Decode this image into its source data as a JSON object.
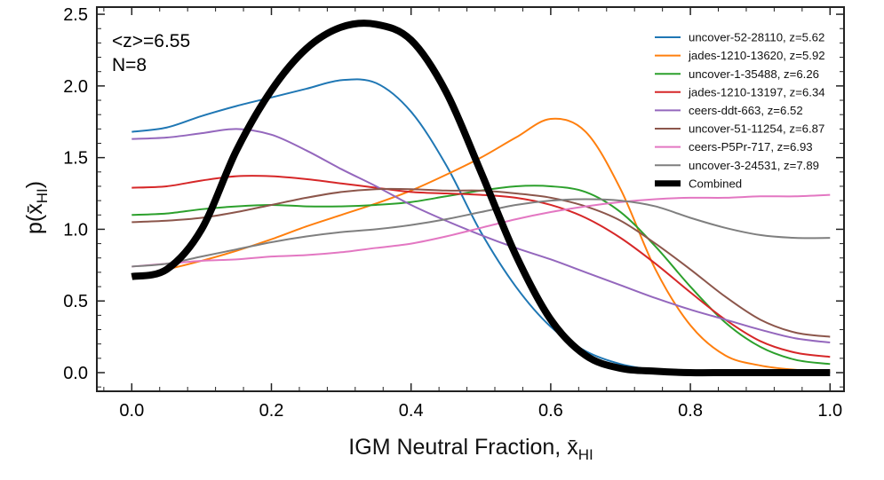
{
  "chart_data": {
    "type": "line",
    "xlabel": "IGM Neutral Fraction, x̄",
    "xlabel_sub": "HI",
    "ylabel": "p(x̄",
    "ylabel_sub": "HI",
    "ylabel_close": ")",
    "xlim": [
      -0.05,
      1.02
    ],
    "ylim": [
      -0.13,
      2.55
    ],
    "x_ticks": [
      "0.0",
      "0.2",
      "0.4",
      "0.6",
      "0.8",
      "1.0"
    ],
    "y_ticks": [
      "0.0",
      "0.5",
      "1.0",
      "1.5",
      "2.0",
      "2.5"
    ],
    "annotations": [
      "<z>=6.55",
      "N=8"
    ],
    "legend_position": "top-right",
    "grid": false,
    "x": [
      0.0,
      0.05,
      0.1,
      0.15,
      0.2,
      0.25,
      0.3,
      0.35,
      0.4,
      0.45,
      0.5,
      0.55,
      0.6,
      0.65,
      0.7,
      0.75,
      0.8,
      0.85,
      0.9,
      0.95,
      1.0
    ],
    "series": [
      {
        "name": "uncover-52-28110, z=5.62",
        "color": "#1f77b4",
        "width": 2,
        "values": [
          1.68,
          1.71,
          1.79,
          1.86,
          1.92,
          1.98,
          2.04,
          2.02,
          1.82,
          1.45,
          0.98,
          0.6,
          0.32,
          0.15,
          0.06,
          0.02,
          0.01,
          0.0,
          0.0,
          0.0,
          0.0
        ]
      },
      {
        "name": "jades-1210-13620, z=5.92",
        "color": "#ff7f0e",
        "width": 2,
        "values": [
          0.67,
          0.72,
          0.78,
          0.85,
          0.93,
          1.02,
          1.1,
          1.18,
          1.27,
          1.38,
          1.5,
          1.64,
          1.77,
          1.68,
          1.28,
          0.72,
          0.33,
          0.12,
          0.05,
          0.02,
          0.01
        ]
      },
      {
        "name": "uncover-1-35488, z=6.26",
        "color": "#2ca02c",
        "width": 2,
        "values": [
          1.1,
          1.11,
          1.14,
          1.16,
          1.17,
          1.16,
          1.16,
          1.17,
          1.19,
          1.23,
          1.27,
          1.3,
          1.3,
          1.26,
          1.12,
          0.88,
          0.6,
          0.35,
          0.18,
          0.09,
          0.06
        ]
      },
      {
        "name": "jades-1210-13197, z=6.34",
        "color": "#d62728",
        "width": 2,
        "values": [
          1.29,
          1.3,
          1.34,
          1.37,
          1.37,
          1.35,
          1.32,
          1.29,
          1.26,
          1.25,
          1.24,
          1.22,
          1.17,
          1.08,
          0.94,
          0.76,
          0.56,
          0.37,
          0.22,
          0.14,
          0.11
        ]
      },
      {
        "name": "ceers-ddt-663, z=6.52",
        "color": "#9467bd",
        "width": 2,
        "values": [
          1.63,
          1.64,
          1.67,
          1.7,
          1.66,
          1.55,
          1.42,
          1.3,
          1.17,
          1.06,
          0.96,
          0.87,
          0.79,
          0.7,
          0.61,
          0.52,
          0.44,
          0.37,
          0.3,
          0.24,
          0.21
        ]
      },
      {
        "name": "uncover-51-11254, z=6.87",
        "color": "#8c564b",
        "width": 2,
        "values": [
          1.05,
          1.06,
          1.08,
          1.12,
          1.17,
          1.22,
          1.26,
          1.28,
          1.28,
          1.27,
          1.27,
          1.25,
          1.22,
          1.16,
          1.06,
          0.9,
          0.72,
          0.53,
          0.37,
          0.28,
          0.25
        ]
      },
      {
        "name": "ceers-P5Pr-717, z=6.93",
        "color": "#e377c2",
        "width": 2,
        "values": [
          0.74,
          0.76,
          0.78,
          0.79,
          0.81,
          0.82,
          0.84,
          0.87,
          0.9,
          0.95,
          1.01,
          1.07,
          1.12,
          1.16,
          1.19,
          1.21,
          1.22,
          1.22,
          1.23,
          1.23,
          1.24
        ]
      },
      {
        "name": "uncover-3-24531, z=7.89",
        "color": "#7f7f7f",
        "width": 2,
        "values": [
          0.74,
          0.76,
          0.81,
          0.86,
          0.91,
          0.95,
          0.98,
          1.0,
          1.03,
          1.07,
          1.12,
          1.17,
          1.2,
          1.21,
          1.2,
          1.16,
          1.08,
          1.01,
          0.96,
          0.94,
          0.94
        ]
      },
      {
        "name": "Combined",
        "color": "#000000",
        "width": 8,
        "values": [
          0.67,
          0.72,
          1.0,
          1.55,
          1.97,
          2.26,
          2.41,
          2.43,
          2.32,
          1.96,
          1.4,
          0.82,
          0.37,
          0.12,
          0.03,
          0.01,
          0.0,
          0.0,
          0.0,
          0.0,
          0.0
        ]
      }
    ]
  }
}
